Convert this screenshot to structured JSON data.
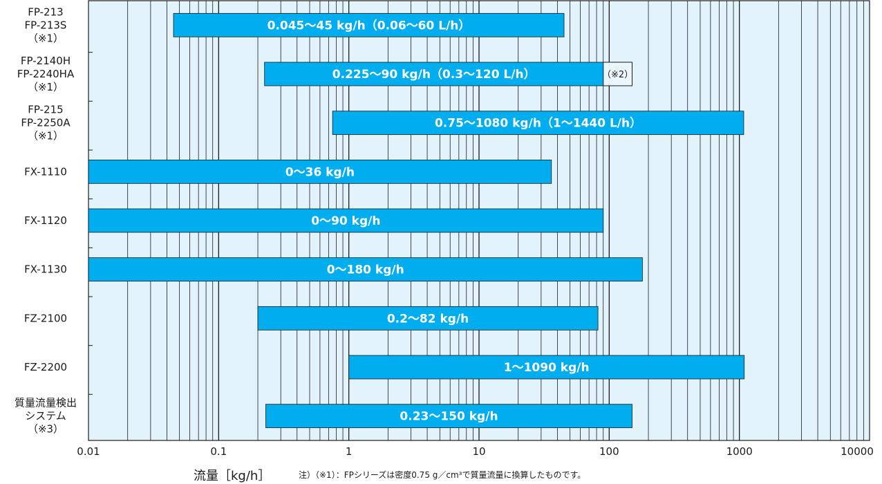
{
  "chart_data": {
    "type": "bar",
    "orientation": "horizontal",
    "x_scale": "log",
    "xlim": [
      0.01,
      10000
    ],
    "xlabel": "流量［kg/h］",
    "x_ticks": [
      "0.01",
      "0.1",
      "1",
      "10",
      "100",
      "1000",
      "10000"
    ],
    "grid": true,
    "colors": {
      "bar": "#00aeef",
      "plot_background": "#e3f3fb",
      "grid": "#1a1a1a"
    },
    "categories": [
      {
        "lines": [
          "FP-213",
          "FP-213S",
          "（※1）"
        ],
        "start": 0.045,
        "end": 45,
        "label": "0.045〜45 kg/h（0.06〜60 L/h）"
      },
      {
        "lines": [
          "FP-2140H",
          "FP-2240HA",
          "（※1）"
        ],
        "start": 0.225,
        "end": 90,
        "label": "0.225〜90 kg/h（0.3〜120 L/h）",
        "extension": {
          "end": 150,
          "label": "（※2）"
        }
      },
      {
        "lines": [
          "FP-215",
          "FP-2250A",
          "（※1）"
        ],
        "start": 0.75,
        "end": 1080,
        "label": "0.75〜1080 kg/h（1〜1440 L/h）"
      },
      {
        "lines": [
          "FX-1110"
        ],
        "start": 0,
        "end": 36,
        "label": "0〜36 kg/h"
      },
      {
        "lines": [
          "FX-1120"
        ],
        "start": 0,
        "end": 90,
        "label": "0〜90 kg/h"
      },
      {
        "lines": [
          "FX-1130"
        ],
        "start": 0,
        "end": 180,
        "label": "0〜180 kg/h"
      },
      {
        "lines": [
          "FZ-2100"
        ],
        "start": 0.2,
        "end": 82,
        "label": "0.2〜82 kg/h"
      },
      {
        "lines": [
          "FZ-2200"
        ],
        "start": 1,
        "end": 1090,
        "label": "1〜1090 kg/h"
      },
      {
        "lines": [
          "質量流量検出",
          "システム",
          "（※3）"
        ],
        "start": 0.23,
        "end": 150,
        "label": "0.23〜150 kg/h"
      }
    ],
    "note": "注）（※1）：FPシリーズは密度0.75 g／cm³で質量流量に換算したものです。"
  }
}
